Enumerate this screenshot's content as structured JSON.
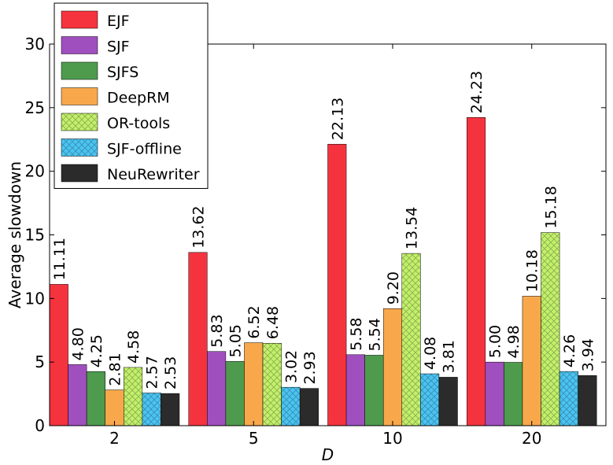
{
  "chart_data": {
    "type": "bar",
    "xlabel": "D",
    "ylabel": "Average slowdown",
    "ylim": [
      0,
      30
    ],
    "yticks": [
      0,
      5,
      10,
      15,
      20,
      25,
      30
    ],
    "grid": false,
    "legend_position": "top-left",
    "categories": [
      "2",
      "5",
      "10",
      "20"
    ],
    "series": [
      {
        "name": "EJF",
        "color": "#f5333f",
        "hatch": false,
        "values": [
          11.11,
          13.62,
          22.13,
          24.23
        ],
        "labels": [
          "11.11",
          "13.62",
          "22.13",
          "24.23"
        ]
      },
      {
        "name": "SJF",
        "color": "#a04fbf",
        "hatch": false,
        "values": [
          4.8,
          5.83,
          5.58,
          5.0
        ],
        "labels": [
          "4.80",
          "5.83",
          "5.58",
          "5.00"
        ]
      },
      {
        "name": "SJFS",
        "color": "#4e9b4e",
        "hatch": false,
        "values": [
          4.25,
          5.05,
          5.54,
          4.98
        ],
        "labels": [
          "4.25",
          "5.05",
          "5.54",
          "4.98"
        ]
      },
      {
        "name": "DeepRM",
        "color": "#f8a84b",
        "hatch": false,
        "values": [
          2.81,
          6.52,
          9.2,
          10.18
        ],
        "labels": [
          "2.81",
          "6.52",
          "9.20",
          "10.18"
        ]
      },
      {
        "name": "OR-tools",
        "color": "#c2f06b",
        "hatch": true,
        "values": [
          4.58,
          6.48,
          13.54,
          15.18
        ],
        "labels": [
          "4.58",
          "6.48",
          "13.54",
          "15.18"
        ]
      },
      {
        "name": "SJF-offline",
        "color": "#4bc4f2",
        "hatch": true,
        "values": [
          2.57,
          3.02,
          4.08,
          4.26
        ],
        "labels": [
          "2.57",
          "3.02",
          "4.08",
          "4.26"
        ]
      },
      {
        "name": "NeuRewriter",
        "color": "#2b2b2b",
        "hatch": false,
        "values": [
          2.53,
          2.93,
          3.81,
          3.94
        ],
        "labels": [
          "2.53",
          "2.93",
          "3.81",
          "3.94"
        ]
      }
    ]
  }
}
